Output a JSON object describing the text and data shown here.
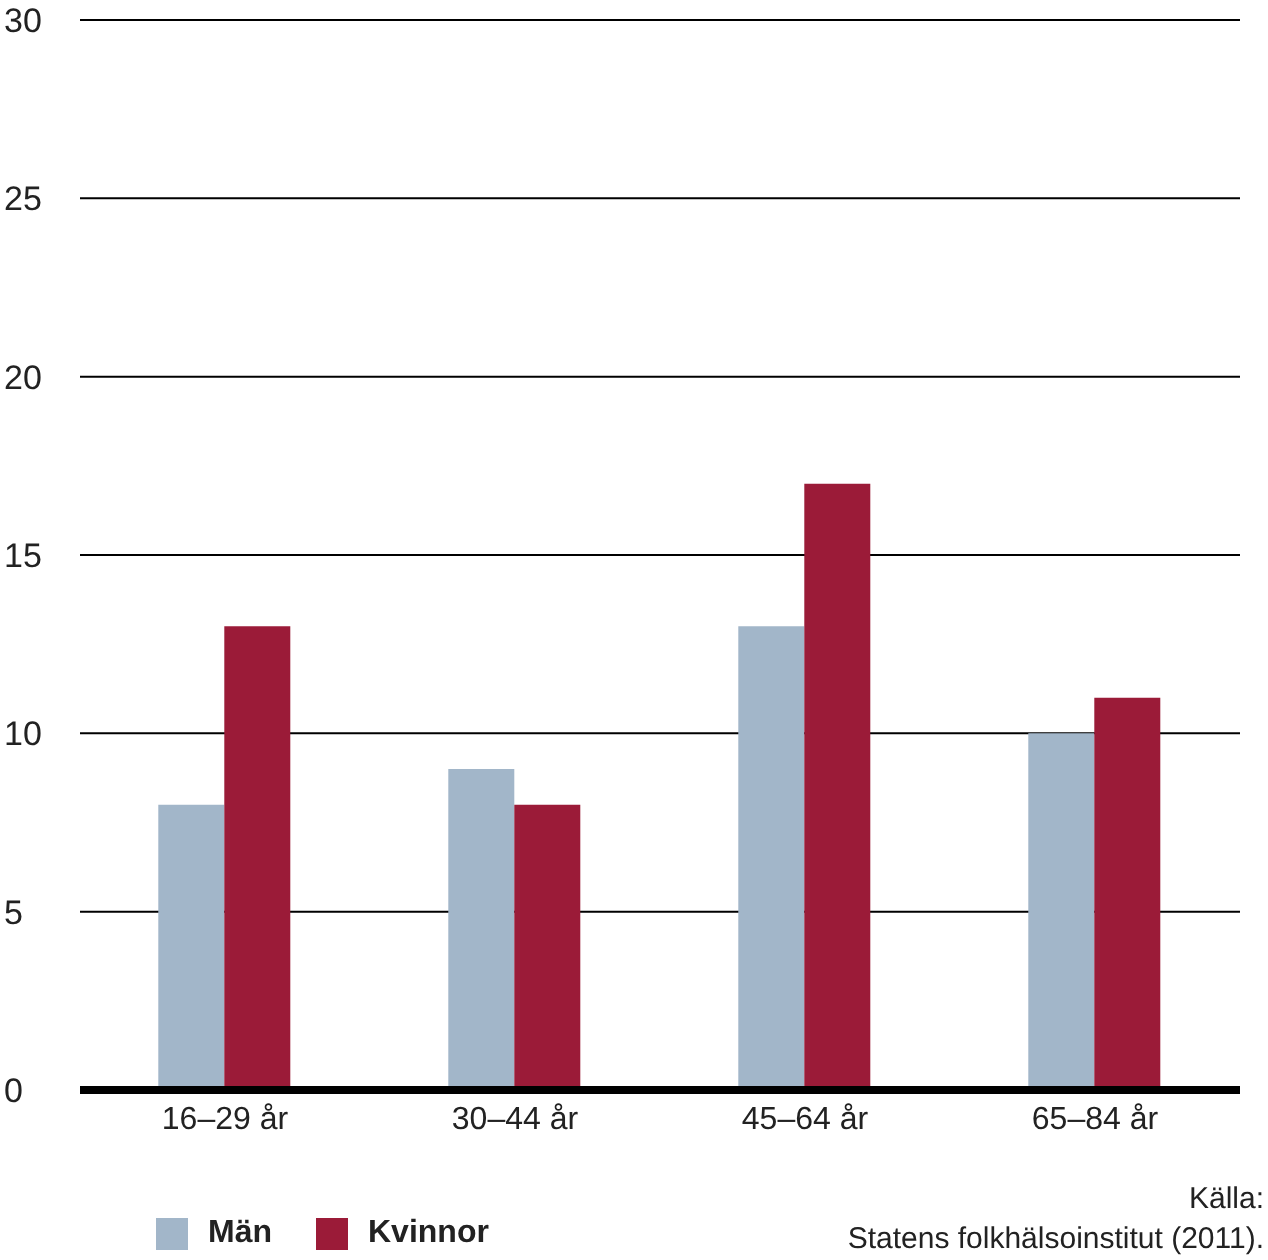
{
  "chart_data": {
    "type": "bar",
    "categories": [
      "16–29 år",
      "30–44 år",
      "45–64 år",
      "65–84 år"
    ],
    "series": [
      {
        "name": "Män",
        "color": "#a2b6c9",
        "values": [
          8,
          9,
          13,
          10
        ]
      },
      {
        "name": "Kvinnor",
        "color": "#9b1b38",
        "values": [
          13,
          8,
          17,
          11
        ]
      }
    ],
    "ylim": [
      0,
      30
    ],
    "yticks": [
      0,
      5,
      10,
      15,
      20,
      25,
      30
    ],
    "grid": "y",
    "legend": "bottom left",
    "annotations": [
      "Källa:",
      "Statens folkhälsoinstitut (2011)."
    ]
  }
}
